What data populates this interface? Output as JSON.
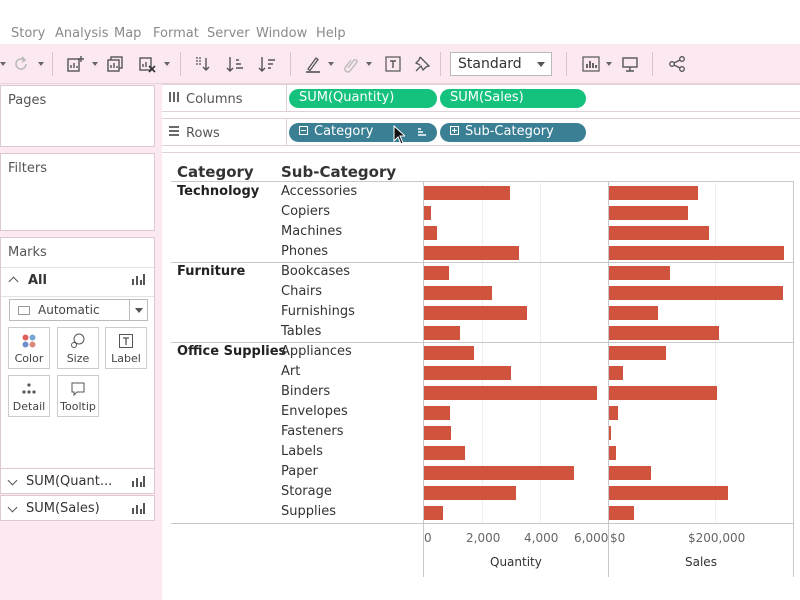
{
  "menu": [
    "Story",
    "Analysis",
    "Map",
    "Format",
    "Server",
    "Window",
    "Help"
  ],
  "toolbar": {
    "fit_mode": "Standard"
  },
  "panels": {
    "pages_title": "Pages",
    "filters_title": "Filters",
    "marks_title": "Marks",
    "marks_all": "All",
    "mark_type": "Automatic",
    "mark_buttons": [
      "Color",
      "Size",
      "Label",
      "Detail",
      "Tooltip"
    ],
    "measure_cards": [
      "SUM(Quant...",
      "SUM(Sales)"
    ]
  },
  "shelves": {
    "columns_label": "Columns",
    "rows_label": "Rows",
    "columns_pills": [
      "SUM(Quantity)",
      "SUM(Sales)"
    ],
    "rows_pills": [
      "Category",
      "Sub-Category"
    ]
  },
  "view": {
    "header_category": "Category",
    "header_subcategory": "Sub-Category",
    "quantity_ticks": [
      "0",
      "2,000",
      "4,000",
      "6,000"
    ],
    "sales_ticks": [
      "$0",
      "$200,000"
    ],
    "quantity_axis_title": "Quantity",
    "sales_axis_title": "Sales"
  },
  "chart_data": {
    "type": "bar",
    "orientation": "horizontal",
    "groups": [
      {
        "category": "Technology",
        "subcategories": [
          "Accessories",
          "Copiers",
          "Machines",
          "Phones"
        ]
      },
      {
        "category": "Furniture",
        "subcategories": [
          "Bookcases",
          "Chairs",
          "Furnishings",
          "Tables"
        ]
      },
      {
        "category": "Office Supplies",
        "subcategories": [
          "Appliances",
          "Art",
          "Binders",
          "Envelopes",
          "Fasteners",
          "Labels",
          "Paper",
          "Storage",
          "Supplies"
        ]
      }
    ],
    "series": [
      {
        "name": "Quantity",
        "xlim": [
          0,
          6000
        ],
        "values": [
          2976,
          234,
          440,
          3289,
          868,
          2356,
          3563,
          1241,
          1729,
          3000,
          5974,
          906,
          914,
          1400,
          5178,
          3158,
          647
        ]
      },
      {
        "name": "Sales",
        "xlim": [
          0,
          330000
        ],
        "values": [
          167380,
          149528,
          189239,
          330007,
          114880,
          328449,
          91705,
          206966,
          107532,
          27119,
          203413,
          16476,
          3024,
          12486,
          78479,
          223844,
          46674
        ]
      }
    ],
    "bar_color": "#d0533d"
  }
}
